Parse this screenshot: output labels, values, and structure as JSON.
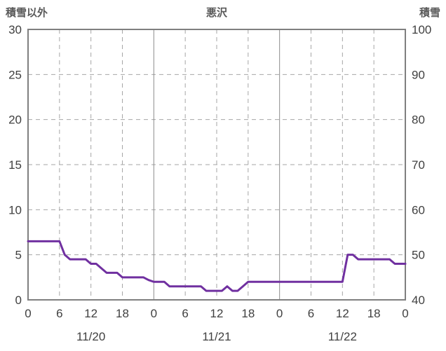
{
  "chart_data": {
    "type": "line",
    "title": "悪沢",
    "left_axis": {
      "title": "積雪以外",
      "min": 0,
      "max": 30,
      "ticks": [
        0,
        5,
        10,
        15,
        20,
        25,
        30
      ]
    },
    "right_axis": {
      "title": "積雪",
      "min": 40,
      "max": 100,
      "ticks": [
        40,
        50,
        60,
        70,
        80,
        90,
        100
      ]
    },
    "x_axis": {
      "min": 0,
      "max": 72,
      "unit": "hour",
      "ticks": [
        {
          "h": 0,
          "label": "0"
        },
        {
          "h": 6,
          "label": "6"
        },
        {
          "h": 12,
          "label": "12"
        },
        {
          "h": 18,
          "label": "18"
        },
        {
          "h": 24,
          "label": "0"
        },
        {
          "h": 30,
          "label": "6"
        },
        {
          "h": 36,
          "label": "12"
        },
        {
          "h": 42,
          "label": "18"
        },
        {
          "h": 48,
          "label": "0"
        },
        {
          "h": 54,
          "label": "6"
        },
        {
          "h": 60,
          "label": "12"
        },
        {
          "h": 66,
          "label": "18"
        },
        {
          "h": 72,
          "label": "0"
        }
      ],
      "day_boundaries": [
        24,
        48
      ],
      "date_labels": [
        {
          "h": 12,
          "label": "11/20"
        },
        {
          "h": 36,
          "label": "11/21"
        },
        {
          "h": 60,
          "label": "11/22"
        }
      ]
    },
    "series": [
      {
        "name": "積雪以外",
        "axis": "left",
        "color": "#7030A0",
        "step_hours": 1,
        "values": [
          6.5,
          6.5,
          6.5,
          6.5,
          6.5,
          6.5,
          6.5,
          5,
          4.5,
          4.5,
          4.5,
          4.5,
          4,
          4,
          3.5,
          3,
          3,
          3,
          2.5,
          2.5,
          2.5,
          2.5,
          2.5,
          2.2,
          2,
          2,
          2,
          1.5,
          1.5,
          1.5,
          1.5,
          1.5,
          1.5,
          1.5,
          1,
          1,
          1,
          1,
          1.5,
          1,
          1,
          1.5,
          2,
          2,
          2,
          2,
          2,
          2,
          2,
          2,
          2,
          2,
          2,
          2,
          2,
          2,
          2,
          2,
          2,
          2,
          2,
          5,
          5,
          4.5,
          4.5,
          4.5,
          4.5,
          4.5,
          4.5,
          4.5,
          4,
          4,
          4
        ]
      }
    ],
    "grid": true,
    "legend_position": "none",
    "style": {
      "background": "#ffffff",
      "text_color": "#404040",
      "title_color": "#595959",
      "grid_color": "#a6a6a6",
      "day_line_color": "#8c8c8c",
      "border_color": "#7f7f7f"
    }
  }
}
